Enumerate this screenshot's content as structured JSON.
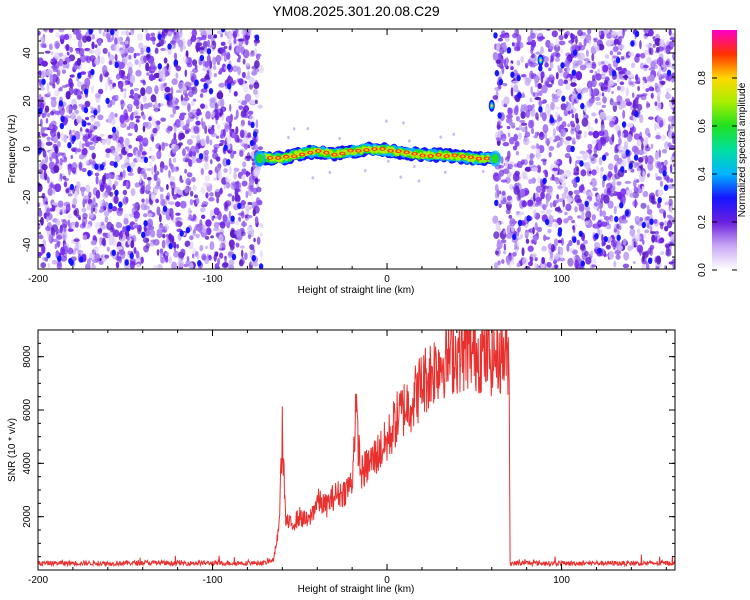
{
  "figure_title": "YM08.2025.301.20.08.C29",
  "colors": {
    "snr_line": "#e8312f",
    "frame": "#000000",
    "background": "#ffffff",
    "noise_primary": "#6a1fe0",
    "noise_light": "#cdb8f4"
  },
  "chart_data": [
    {
      "type": "heatmap",
      "name": "spectrogram",
      "xlabel": "Height of straight line (km)",
      "ylabel": "Frequency (Hz)",
      "xlim": [
        -200,
        165
      ],
      "ylim": [
        -50,
        50
      ],
      "xticks": [
        -200,
        -100,
        0,
        100
      ],
      "yticks": [
        -40,
        -20,
        0,
        20,
        40
      ],
      "xtick_labels": [
        "-200",
        "-100",
        "0",
        "100"
      ],
      "ytick_labels": [
        "-40",
        "-20",
        "0",
        "20",
        "40"
      ],
      "signal_region_x": [
        -73,
        62
      ],
      "noise_region_left_x": [
        -200,
        -72
      ],
      "noise_region_right_x": [
        62,
        165
      ],
      "signal_trace": [
        {
          "x": -72,
          "y": -3.5
        },
        {
          "x": -60,
          "y": -4
        },
        {
          "x": -50,
          "y": -2
        },
        {
          "x": -40,
          "y": -1
        },
        {
          "x": -30,
          "y": -2
        },
        {
          "x": -20,
          "y": -1
        },
        {
          "x": -10,
          "y": 0
        },
        {
          "x": 0,
          "y": -0.5
        },
        {
          "x": 10,
          "y": -1.5
        },
        {
          "x": 20,
          "y": -2.5
        },
        {
          "x": 30,
          "y": -2.5
        },
        {
          "x": 40,
          "y": -3
        },
        {
          "x": 50,
          "y": -4
        },
        {
          "x": 58,
          "y": -4
        }
      ],
      "isolated_spots": [
        {
          "x": 60,
          "y": 18
        },
        {
          "x": 88,
          "y": 37
        }
      ],
      "colorbar": {
        "label": "Normalized spectral amplitude",
        "range": [
          0,
          1
        ],
        "ticks": [
          0.0,
          0.2,
          0.4,
          0.6,
          0.8
        ],
        "tick_labels": [
          "0.0",
          "0.2",
          "0.4",
          "0.6",
          "0.8"
        ]
      }
    },
    {
      "type": "line",
      "name": "snr",
      "xlabel": "Height of straight line (km)",
      "ylabel": "SNR (10 * v/v)",
      "xlim": [
        -200,
        165
      ],
      "ylim": [
        0,
        9000
      ],
      "xticks": [
        -200,
        -100,
        0,
        100
      ],
      "yticks": [
        2000,
        4000,
        6000,
        8000
      ],
      "xtick_labels": [
        "-200",
        "-100",
        "0",
        "100"
      ],
      "ytick_labels": [
        "2000",
        "4000",
        "6000",
        "8000"
      ],
      "series": [
        {
          "name": "SNR",
          "x": [
            -200,
            -180,
            -160,
            -140,
            -120,
            -100,
            -80,
            -70,
            -65,
            -62,
            -60,
            -58,
            -55,
            -50,
            -45,
            -40,
            -35,
            -30,
            -25,
            -20,
            -18,
            -15,
            -10,
            -5,
            0,
            5,
            10,
            15,
            20,
            25,
            30,
            35,
            40,
            45,
            50,
            55,
            60,
            65,
            70,
            70.5,
            80,
            100,
            120,
            140,
            165
          ],
          "y": [
            250,
            260,
            250,
            270,
            260,
            260,
            260,
            270,
            400,
            1500,
            5200,
            1800,
            1700,
            2000,
            1800,
            2600,
            2400,
            2800,
            2900,
            3300,
            6000,
            3600,
            4000,
            4400,
            4800,
            5600,
            6100,
            6400,
            7000,
            7400,
            7800,
            8000,
            8100,
            8200,
            8200,
            8100,
            8000,
            8100,
            8000,
            250,
            260,
            250,
            260,
            250,
            260
          ]
        }
      ]
    }
  ]
}
